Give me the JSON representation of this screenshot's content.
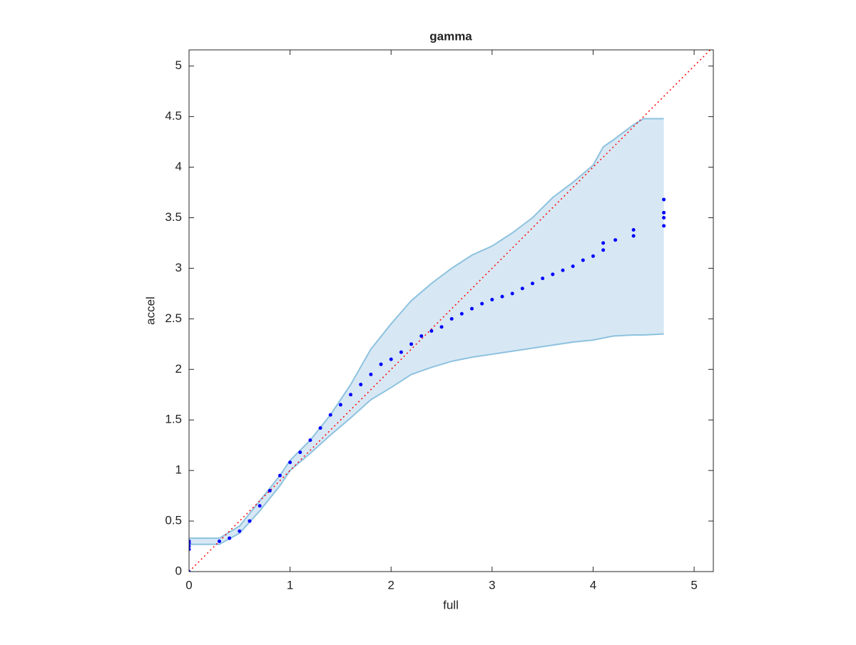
{
  "chart_data": {
    "type": "scatter",
    "title": "gamma",
    "x_label": "full",
    "y_label": "accel",
    "xlim": [
      0,
      5.19
    ],
    "ylim": [
      0,
      5.16
    ],
    "xticks": [
      0,
      1,
      2,
      3,
      4,
      5
    ],
    "yticks": [
      0,
      0.5,
      1,
      1.5,
      2,
      2.5,
      3,
      3.5,
      4,
      4.5,
      5
    ],
    "grid": false,
    "series": [
      {
        "name": "accel",
        "color": "#0000ff",
        "x": [
          0,
          0,
          0,
          0,
          0,
          0.3,
          0.4,
          0.5,
          0.6,
          0.7,
          0.8,
          0.9,
          1.0,
          1.1,
          1.2,
          1.3,
          1.4,
          1.5,
          1.6,
          1.7,
          1.8,
          1.9,
          2.0,
          2.1,
          2.2,
          2.3,
          2.4,
          2.5,
          2.6,
          2.7,
          2.8,
          2.9,
          3.0,
          3.1,
          3.2,
          3.3,
          3.4,
          3.5,
          3.6,
          3.7,
          3.8,
          3.9,
          4.0,
          4.1,
          4.1,
          4.22,
          4.4,
          4.4,
          4.7,
          4.7,
          4.7,
          4.7
        ],
        "values": [
          0,
          0.22,
          0.25,
          0.28,
          0.3,
          0.3,
          0.33,
          0.4,
          0.5,
          0.65,
          0.8,
          0.95,
          1.08,
          1.18,
          1.3,
          1.42,
          1.55,
          1.65,
          1.75,
          1.85,
          1.95,
          2.05,
          2.1,
          2.17,
          2.25,
          2.33,
          2.38,
          2.42,
          2.5,
          2.55,
          2.6,
          2.65,
          2.69,
          2.72,
          2.75,
          2.8,
          2.85,
          2.9,
          2.94,
          2.98,
          3.02,
          3.08,
          3.12,
          3.18,
          3.25,
          3.28,
          3.32,
          3.38,
          3.42,
          3.5,
          3.55,
          3.68
        ]
      }
    ],
    "band": {
      "line_color": "#8ec2df",
      "fill_color": "#d7e8f4",
      "x": [
        0,
        0.3,
        0.5,
        0.7,
        0.9,
        1.0,
        1.2,
        1.4,
        1.6,
        1.8,
        2.0,
        2.2,
        2.4,
        2.6,
        2.8,
        3.0,
        3.2,
        3.4,
        3.6,
        3.8,
        4.0,
        4.1,
        4.2,
        4.4,
        4.5,
        4.7
      ],
      "upper": [
        0.33,
        0.33,
        0.45,
        0.7,
        0.95,
        1.1,
        1.3,
        1.55,
        1.85,
        2.2,
        2.45,
        2.68,
        2.85,
        3.0,
        3.13,
        3.22,
        3.35,
        3.5,
        3.7,
        3.85,
        4.02,
        4.2,
        4.27,
        4.42,
        4.48,
        4.48
      ],
      "lower": [
        0.27,
        0.27,
        0.38,
        0.6,
        0.85,
        1.0,
        1.17,
        1.35,
        1.52,
        1.7,
        1.82,
        1.95,
        2.02,
        2.08,
        2.12,
        2.15,
        2.18,
        2.21,
        2.24,
        2.27,
        2.29,
        2.31,
        2.33,
        2.34,
        2.34,
        2.35
      ]
    },
    "reference_line": {
      "color": "#ff0000",
      "x": [
        0,
        5.19
      ],
      "values": [
        0,
        5.19
      ]
    }
  }
}
